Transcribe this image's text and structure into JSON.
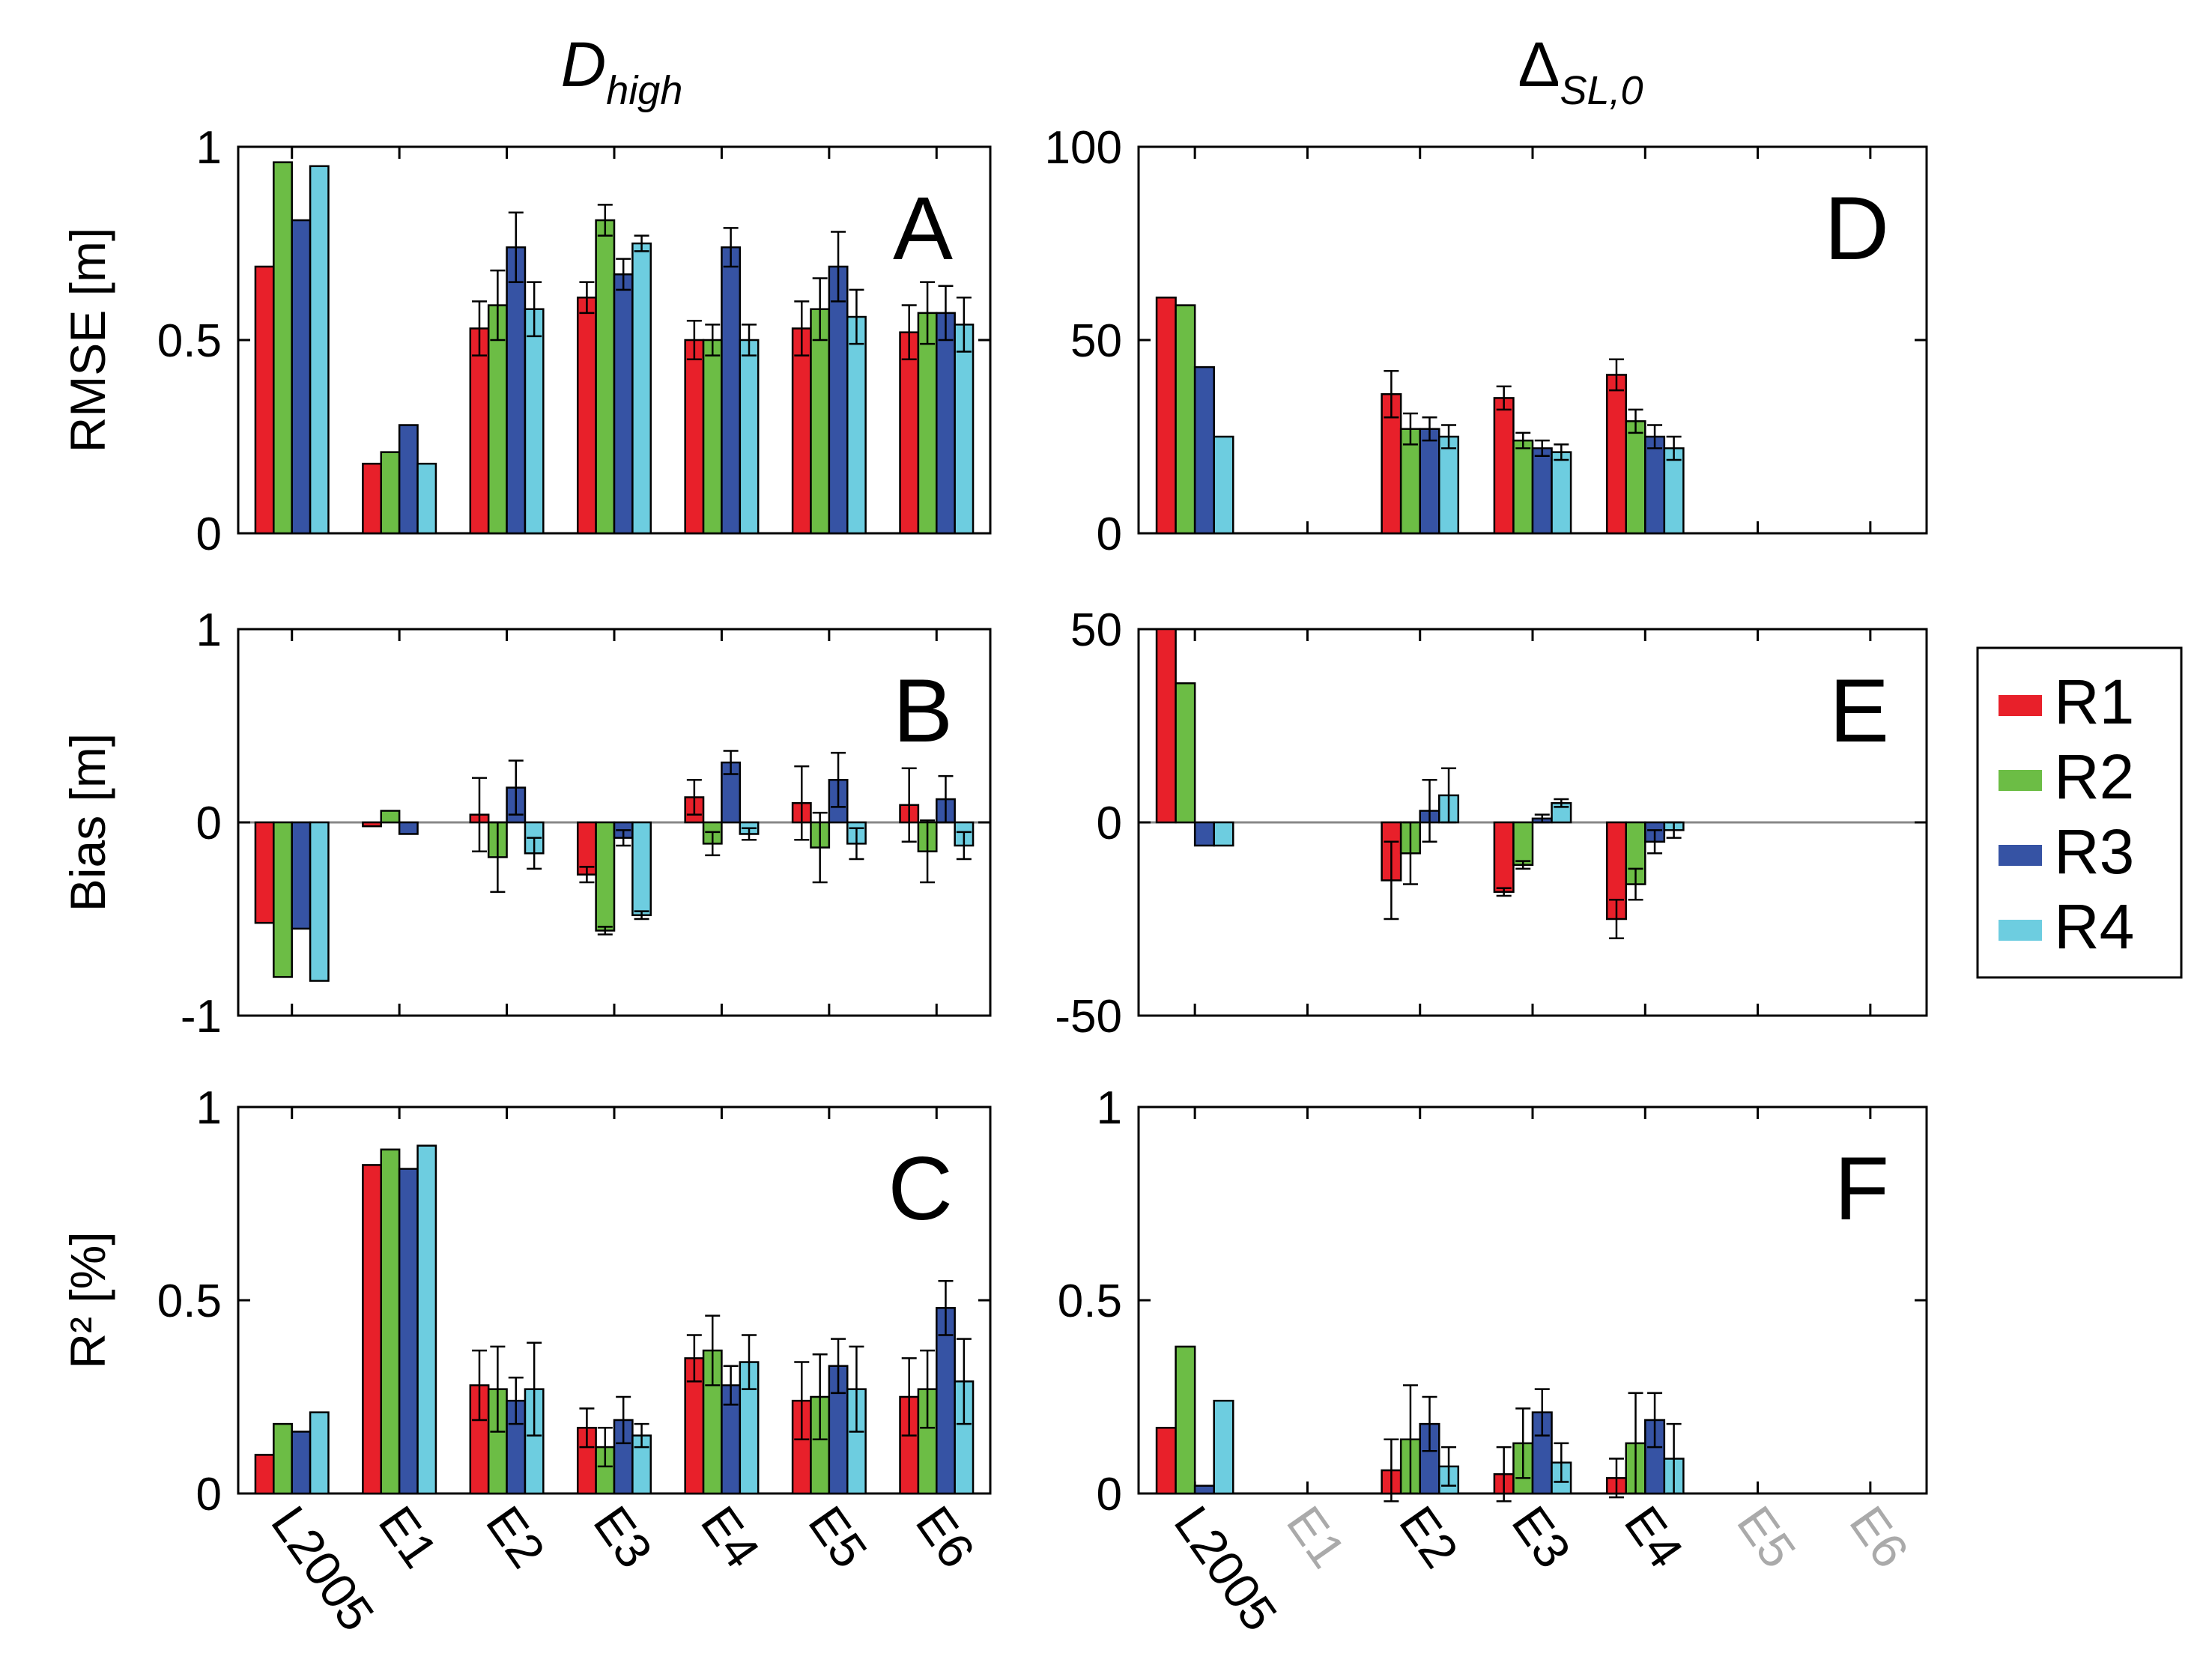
{
  "column_titles": {
    "left": {
      "main": "D",
      "sub": "high"
    },
    "right": {
      "main": "Δ",
      "sub": "SL,0"
    }
  },
  "legend": [
    {
      "name": "R1",
      "color": "#e8202a"
    },
    {
      "name": "R2",
      "color": "#6cbd45"
    },
    {
      "name": "R3",
      "color": "#3653a4"
    },
    {
      "name": "R4",
      "color": "#6dcde0"
    }
  ],
  "chart_data": [
    {
      "panel": "A",
      "type": "bar",
      "ylabel": "RMSE [m]",
      "ylim": [
        0,
        1
      ],
      "yticks": [
        0,
        0.5,
        1
      ],
      "ytick_labels": [
        "0",
        "0.5",
        "1"
      ],
      "categories": [
        "L2005",
        "E1",
        "E2",
        "E3",
        "E4",
        "E5",
        "E6"
      ],
      "muted_categories": [],
      "series": [
        {
          "name": "R1",
          "values": [
            0.69,
            0.18,
            0.53,
            0.61,
            0.5,
            0.53,
            0.52
          ],
          "errors": [
            null,
            null,
            0.07,
            0.04,
            0.05,
            0.07,
            0.07
          ]
        },
        {
          "name": "R2",
          "values": [
            0.96,
            0.21,
            0.59,
            0.81,
            0.5,
            0.58,
            0.57
          ],
          "errors": [
            null,
            null,
            0.09,
            0.04,
            0.04,
            0.08,
            0.08
          ]
        },
        {
          "name": "R3",
          "values": [
            0.81,
            0.28,
            0.74,
            0.67,
            0.74,
            0.69,
            0.57
          ],
          "errors": [
            null,
            null,
            0.09,
            0.04,
            0.05,
            0.09,
            0.07
          ]
        },
        {
          "name": "R4",
          "values": [
            0.95,
            0.18,
            0.58,
            0.75,
            0.5,
            0.56,
            0.54
          ],
          "errors": [
            null,
            null,
            0.07,
            0.02,
            0.04,
            0.07,
            0.07
          ]
        }
      ]
    },
    {
      "panel": "B",
      "type": "bar",
      "ylabel": "Bias [m]",
      "ylim": [
        -1,
        1
      ],
      "yticks": [
        -1,
        0,
        1
      ],
      "ytick_labels": [
        "-1",
        "0",
        "1"
      ],
      "categories": [
        "L2005",
        "E1",
        "E2",
        "E3",
        "E4",
        "E5",
        "E6"
      ],
      "muted_categories": [],
      "series": [
        {
          "name": "R1",
          "values": [
            -0.52,
            -0.02,
            0.04,
            -0.27,
            0.13,
            0.1,
            0.09
          ],
          "errors": [
            null,
            null,
            0.19,
            0.04,
            0.09,
            0.19,
            0.19
          ]
        },
        {
          "name": "R2",
          "values": [
            -0.8,
            0.06,
            -0.18,
            -0.56,
            -0.11,
            -0.13,
            -0.15
          ],
          "errors": [
            null,
            null,
            0.18,
            0.02,
            0.06,
            0.18,
            0.16
          ]
        },
        {
          "name": "R3",
          "values": [
            -0.55,
            -0.06,
            0.18,
            -0.08,
            0.31,
            0.22,
            0.12
          ],
          "errors": [
            null,
            null,
            0.14,
            0.04,
            0.06,
            0.14,
            0.12
          ]
        },
        {
          "name": "R4",
          "values": [
            -0.82,
            0.0,
            -0.16,
            -0.48,
            -0.06,
            -0.11,
            -0.12
          ],
          "errors": [
            null,
            null,
            0.08,
            0.02,
            0.03,
            0.08,
            0.07
          ]
        }
      ]
    },
    {
      "panel": "C",
      "type": "bar",
      "ylabel": "R² [%]",
      "ylim": [
        0,
        1
      ],
      "yticks": [
        0,
        0.5,
        1
      ],
      "ytick_labels": [
        "0",
        "0.5",
        "1"
      ],
      "categories": [
        "L2005",
        "E1",
        "E2",
        "E3",
        "E4",
        "E5",
        "E6"
      ],
      "muted_categories": [],
      "series": [
        {
          "name": "R1",
          "values": [
            0.1,
            0.85,
            0.28,
            0.17,
            0.35,
            0.24,
            0.25
          ],
          "errors": [
            null,
            null,
            0.09,
            0.05,
            0.06,
            0.1,
            0.1
          ]
        },
        {
          "name": "R2",
          "values": [
            0.18,
            0.89,
            0.27,
            0.12,
            0.37,
            0.25,
            0.27
          ],
          "errors": [
            null,
            null,
            0.11,
            0.05,
            0.09,
            0.11,
            0.1
          ]
        },
        {
          "name": "R3",
          "values": [
            0.16,
            0.84,
            0.24,
            0.19,
            0.28,
            0.33,
            0.48
          ],
          "errors": [
            null,
            null,
            0.06,
            0.06,
            0.05,
            0.07,
            0.07
          ]
        },
        {
          "name": "R4",
          "values": [
            0.21,
            0.9,
            0.27,
            0.15,
            0.34,
            0.27,
            0.29
          ],
          "errors": [
            null,
            null,
            0.12,
            0.03,
            0.07,
            0.11,
            0.11
          ]
        }
      ]
    },
    {
      "panel": "D",
      "type": "bar",
      "ylabel": "",
      "ylim": [
        0,
        100
      ],
      "yticks": [
        0,
        50,
        100
      ],
      "ytick_labels": [
        "0",
        "50",
        "100"
      ],
      "categories": [
        "L2005",
        "E1",
        "E2",
        "E3",
        "E4",
        "E5",
        "E6"
      ],
      "muted_categories": [
        "E1",
        "E5",
        "E6"
      ],
      "series": [
        {
          "name": "R1",
          "values": [
            61,
            null,
            36,
            35,
            41,
            null,
            null
          ],
          "errors": [
            null,
            null,
            6,
            3,
            4,
            null,
            null
          ]
        },
        {
          "name": "R2",
          "values": [
            59,
            null,
            27,
            24,
            29,
            null,
            null
          ],
          "errors": [
            null,
            null,
            4,
            2,
            3,
            null,
            null
          ]
        },
        {
          "name": "R3",
          "values": [
            43,
            null,
            27,
            22,
            25,
            null,
            null
          ],
          "errors": [
            null,
            null,
            3,
            2,
            3,
            null,
            null
          ]
        },
        {
          "name": "R4",
          "values": [
            25,
            null,
            25,
            21,
            22,
            null,
            null
          ],
          "errors": [
            null,
            null,
            3,
            2,
            3,
            null,
            null
          ]
        }
      ]
    },
    {
      "panel": "E",
      "type": "bar",
      "ylabel": "",
      "ylim": [
        -50,
        50
      ],
      "yticks": [
        -50,
        0,
        50
      ],
      "ytick_labels": [
        "-50",
        "0",
        "50"
      ],
      "categories": [
        "L2005",
        "E1",
        "E2",
        "E3",
        "E4",
        "E5",
        "E6"
      ],
      "muted_categories": [
        "E1",
        "E5",
        "E6"
      ],
      "series": [
        {
          "name": "R1",
          "values": [
            50,
            null,
            -15,
            -18,
            -25,
            null,
            null
          ],
          "errors": [
            null,
            null,
            10,
            1,
            5,
            null,
            null
          ]
        },
        {
          "name": "R2",
          "values": [
            36,
            null,
            -8,
            -11,
            -16,
            null,
            null
          ],
          "errors": [
            null,
            null,
            8,
            1,
            4,
            null,
            null
          ]
        },
        {
          "name": "R3",
          "values": [
            -6,
            null,
            3,
            1,
            -5,
            null,
            null
          ],
          "errors": [
            null,
            null,
            8,
            1,
            3,
            null,
            null
          ]
        },
        {
          "name": "R4",
          "values": [
            -6,
            null,
            7,
            5,
            -2,
            null,
            null
          ],
          "errors": [
            null,
            null,
            7,
            1,
            2,
            null,
            null
          ]
        }
      ]
    },
    {
      "panel": "F",
      "type": "bar",
      "ylabel": "",
      "ylim": [
        0,
        1
      ],
      "yticks": [
        0,
        0.5,
        1
      ],
      "ytick_labels": [
        "0",
        "0.5",
        "1"
      ],
      "categories": [
        "L2005",
        "E1",
        "E2",
        "E3",
        "E4",
        "E5",
        "E6"
      ],
      "muted_categories": [
        "E1",
        "E5",
        "E6"
      ],
      "series": [
        {
          "name": "R1",
          "values": [
            0.17,
            null,
            0.06,
            0.05,
            0.04,
            null,
            null
          ],
          "errors": [
            null,
            null,
            0.08,
            0.07,
            0.05,
            null,
            null
          ]
        },
        {
          "name": "R2",
          "values": [
            0.38,
            null,
            0.14,
            0.13,
            0.13,
            null,
            null
          ],
          "errors": [
            null,
            null,
            0.14,
            0.09,
            0.13,
            null,
            null
          ]
        },
        {
          "name": "R3",
          "values": [
            0.02,
            null,
            0.18,
            0.21,
            0.19,
            null,
            null
          ],
          "errors": [
            null,
            null,
            0.07,
            0.06,
            0.07,
            null,
            null
          ]
        },
        {
          "name": "R4",
          "values": [
            0.24,
            null,
            0.07,
            0.08,
            0.09,
            null,
            null
          ],
          "errors": [
            null,
            null,
            0.05,
            0.05,
            0.09,
            null,
            null
          ]
        }
      ]
    }
  ]
}
